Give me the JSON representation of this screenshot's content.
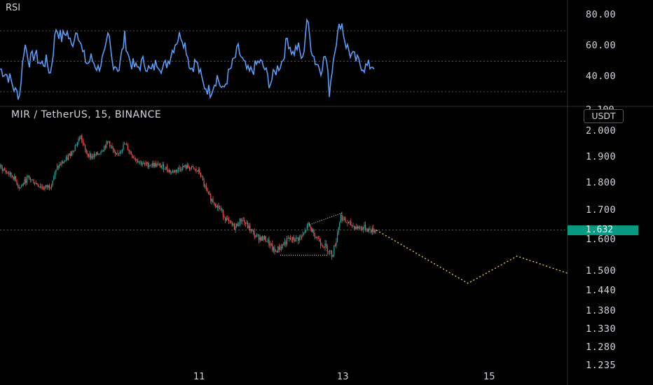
{
  "rsi": {
    "title": "RSI",
    "y_labels": [
      "80.00",
      "60.00",
      "40.00"
    ],
    "levels": [
      70,
      50,
      30
    ],
    "range": [
      20,
      80
    ],
    "line_color": "#5b9cf6"
  },
  "main": {
    "title": "MIR / TetherUS, 15, BINANCE",
    "unit_label": "USDT",
    "cut_label": "2.100",
    "y_labels": [
      "2.000",
      "1.900",
      "1.800",
      "1.700",
      "1.600",
      "1.500",
      "1.440",
      "1.380",
      "1.330",
      "1.280",
      "1.235"
    ],
    "current_price": "1.632",
    "price_tag_color": "#089981",
    "up_color": "#26a69a",
    "down_color": "#ef5350",
    "projection_color": "#f0d060"
  },
  "x_axis": {
    "labels": [
      "11",
      "13",
      "15"
    ]
  },
  "chart_data": {
    "type": "line",
    "title": "MIR / TetherUS, 15, BINANCE",
    "price_series": {
      "name": "MIR / TetherUS",
      "keypoints": [
        [
          0,
          1.86
        ],
        [
          20,
          1.82
        ],
        [
          28,
          1.78
        ],
        [
          40,
          1.82
        ],
        [
          50,
          1.8
        ],
        [
          62,
          1.78
        ],
        [
          72,
          1.79
        ],
        [
          82,
          1.86
        ],
        [
          95,
          1.89
        ],
        [
          105,
          1.93
        ],
        [
          115,
          1.98
        ],
        [
          122,
          1.92
        ],
        [
          130,
          1.9
        ],
        [
          140,
          1.91
        ],
        [
          155,
          1.96
        ],
        [
          165,
          1.9
        ],
        [
          178,
          1.95
        ],
        [
          190,
          1.9
        ],
        [
          205,
          1.87
        ],
        [
          220,
          1.87
        ],
        [
          235,
          1.86
        ],
        [
          245,
          1.84
        ],
        [
          260,
          1.86
        ],
        [
          270,
          1.86
        ],
        [
          285,
          1.84
        ],
        [
          290,
          1.8
        ],
        [
          298,
          1.75
        ],
        [
          305,
          1.73
        ],
        [
          315,
          1.7
        ],
        [
          325,
          1.66
        ],
        [
          335,
          1.64
        ],
        [
          345,
          1.67
        ],
        [
          355,
          1.64
        ],
        [
          365,
          1.61
        ],
        [
          380,
          1.6
        ],
        [
          392,
          1.56
        ],
        [
          402,
          1.58
        ],
        [
          412,
          1.6
        ],
        [
          422,
          1.6
        ],
        [
          432,
          1.61
        ],
        [
          440,
          1.65
        ],
        [
          448,
          1.62
        ],
        [
          458,
          1.59
        ],
        [
          468,
          1.57
        ],
        [
          474,
          1.55
        ],
        [
          480,
          1.6
        ],
        [
          486,
          1.68
        ],
        [
          493,
          1.66
        ],
        [
          500,
          1.65
        ],
        [
          510,
          1.64
        ],
        [
          520,
          1.64
        ],
        [
          530,
          1.63
        ],
        [
          537,
          1.632
        ]
      ]
    },
    "projection": [
      [
        537,
        1.632
      ],
      [
        668,
        1.462
      ],
      [
        738,
        1.547
      ],
      [
        810,
        1.493
      ]
    ],
    "rsi_series": {
      "name": "RSI",
      "keypoints": [
        [
          0,
          45
        ],
        [
          8,
          42
        ],
        [
          15,
          38
        ],
        [
          22,
          30
        ],
        [
          28,
          28
        ],
        [
          35,
          62
        ],
        [
          42,
          50
        ],
        [
          50,
          55
        ],
        [
          58,
          48
        ],
        [
          66,
          50
        ],
        [
          72,
          42
        ],
        [
          80,
          72
        ],
        [
          88,
          65
        ],
        [
          95,
          70
        ],
        [
          102,
          60
        ],
        [
          110,
          72
        ],
        [
          118,
          55
        ],
        [
          125,
          48
        ],
        [
          130,
          52
        ],
        [
          140,
          45
        ],
        [
          150,
          55
        ],
        [
          155,
          68
        ],
        [
          160,
          50
        ],
        [
          170,
          45
        ],
        [
          178,
          66
        ],
        [
          185,
          50
        ],
        [
          195,
          45
        ],
        [
          205,
          50
        ],
        [
          215,
          43
        ],
        [
          225,
          50
        ],
        [
          232,
          45
        ],
        [
          240,
          50
        ],
        [
          250,
          62
        ],
        [
          258,
          68
        ],
        [
          265,
          60
        ],
        [
          272,
          45
        ],
        [
          280,
          50
        ],
        [
          290,
          35
        ],
        [
          300,
          30
        ],
        [
          310,
          40
        ],
        [
          318,
          30
        ],
        [
          325,
          40
        ],
        [
          332,
          48
        ],
        [
          340,
          58
        ],
        [
          348,
          48
        ],
        [
          355,
          42
        ],
        [
          362,
          45
        ],
        [
          370,
          50
        ],
        [
          378,
          45
        ],
        [
          385,
          35
        ],
        [
          395,
          45
        ],
        [
          403,
          50
        ],
        [
          410,
          65
        ],
        [
          418,
          55
        ],
        [
          425,
          60
        ],
        [
          432,
          50
        ],
        [
          438,
          78
        ],
        [
          444,
          60
        ],
        [
          450,
          50
        ],
        [
          458,
          45
        ],
        [
          465,
          55
        ],
        [
          470,
          30
        ],
        [
          478,
          60
        ],
        [
          487,
          77
        ],
        [
          493,
          62
        ],
        [
          500,
          55
        ],
        [
          510,
          50
        ],
        [
          520,
          46
        ],
        [
          535,
          48
        ]
      ]
    }
  }
}
